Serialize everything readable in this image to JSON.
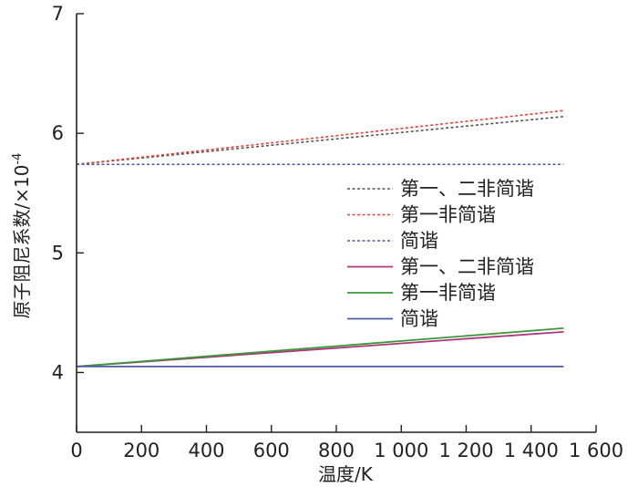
{
  "chart_data": {
    "type": "line",
    "xlabel": "温度/K",
    "ylabel": "原子阻尼系数/×10",
    "ylabel_exponent": "-4",
    "xlim": [
      0,
      1600
    ],
    "ylim": [
      3.5,
      7
    ],
    "x_ticks": [
      0,
      200,
      400,
      600,
      800,
      1000,
      1200,
      1400,
      1600
    ],
    "x_tick_labels": [
      "0",
      "200",
      "400",
      "600",
      "800",
      "1 000",
      "1 200",
      "1 400",
      "1 600"
    ],
    "y_ticks": [
      4,
      5,
      6,
      7
    ],
    "y_tick_labels": [
      "4",
      "5",
      "6",
      "7"
    ],
    "grid": false,
    "legend_position": "center-right",
    "series": [
      {
        "name": "第一、二非简谐",
        "color": "#555555",
        "style": "dotted",
        "x": [
          0,
          1500
        ],
        "y": [
          5.74,
          6.14
        ]
      },
      {
        "name": "第一非简谐",
        "color": "#e8413c",
        "style": "dotted",
        "x": [
          0,
          1500
        ],
        "y": [
          5.74,
          6.19
        ]
      },
      {
        "name": "简谐",
        "color": "#4a5aa8",
        "style": "dotted",
        "x": [
          0,
          1500
        ],
        "y": [
          5.74,
          5.74
        ]
      },
      {
        "name": "第一、二非简谐",
        "color": "#b0357a",
        "style": "solid",
        "x": [
          0,
          1500
        ],
        "y": [
          4.05,
          4.34
        ]
      },
      {
        "name": "第一非简谐",
        "color": "#3a9a3a",
        "style": "solid",
        "x": [
          0,
          1500
        ],
        "y": [
          4.05,
          4.37
        ]
      },
      {
        "name": "简谐",
        "color": "#4a5aa8",
        "style": "solid",
        "x": [
          0,
          1500
        ],
        "y": [
          4.05,
          4.05
        ]
      }
    ]
  }
}
